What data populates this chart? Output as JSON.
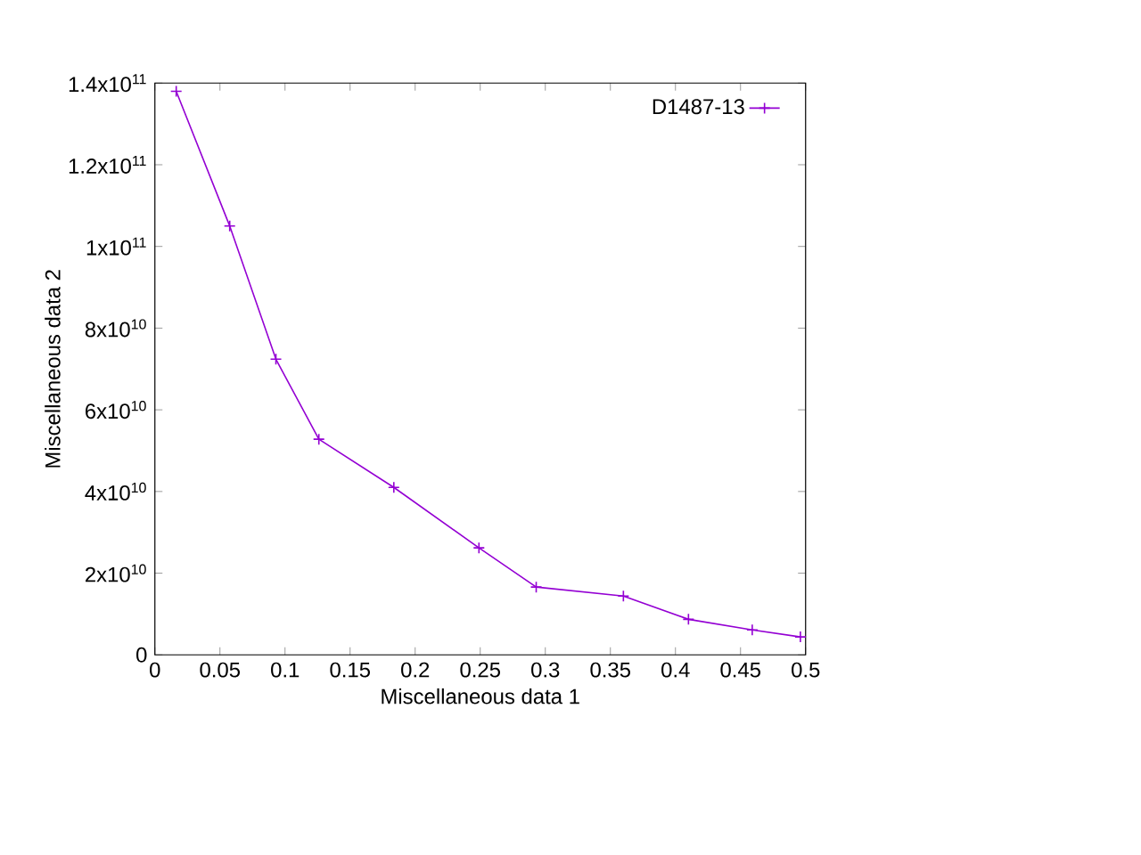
{
  "chart_data": {
    "type": "line",
    "xlabel": "Miscellaneous data 1",
    "ylabel": "Miscellaneous data 2",
    "x": [
      0.0164,
      0.0575,
      0.093,
      0.126,
      0.1836,
      0.249,
      0.293,
      0.36,
      0.41,
      0.459,
      0.496
    ],
    "series": [
      {
        "name": "D1487-13",
        "color": "#9400d3",
        "values": [
          138000000000,
          105000000000,
          72400000000,
          52800000000,
          41000000000,
          26200000000,
          16600000000,
          14400000000,
          8700000000,
          6100000000,
          4400000000
        ]
      }
    ],
    "xlim": [
      0,
      0.5
    ],
    "ylim": [
      0,
      140000000000
    ],
    "xticks": [
      0,
      0.05,
      0.1,
      0.15,
      0.2,
      0.25,
      0.3,
      0.35,
      0.4,
      0.45,
      0.5
    ],
    "yticks": [
      {
        "value": 0,
        "label": "0"
      },
      {
        "value": 20000000000,
        "label": "2x10$^{10}$"
      },
      {
        "value": 40000000000,
        "label": "4x10$^{10}$"
      },
      {
        "value": 60000000000,
        "label": "6x10$^{10}$"
      },
      {
        "value": 80000000000,
        "label": "8x10$^{10}$"
      },
      {
        "value": 100000000000,
        "label": "1x10$^{11}$"
      },
      {
        "value": 120000000000,
        "label": "1.2x10$^{11}$"
      },
      {
        "value": 140000000000,
        "label": "1.4x10$^{11}$"
      }
    ],
    "legend": "top right",
    "marker": "cross",
    "line_style": "solid",
    "grid": false
  }
}
